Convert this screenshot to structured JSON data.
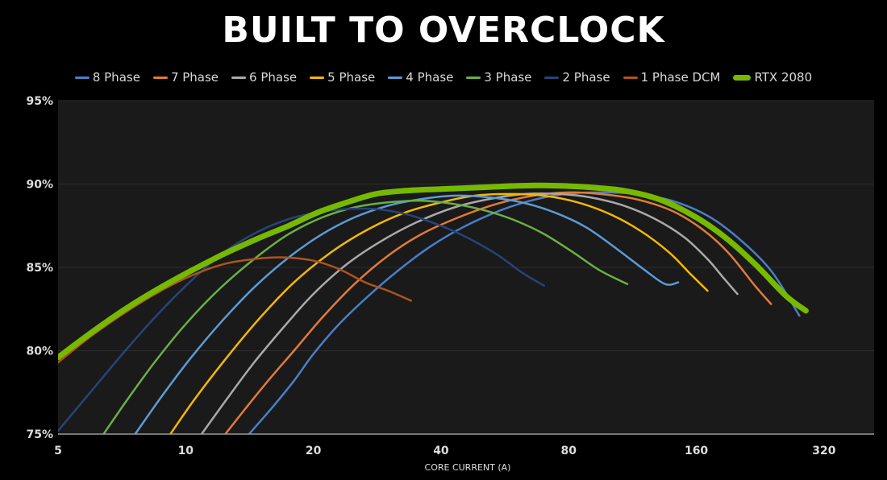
{
  "title": "BUILT TO OVERCLOCK",
  "chart_data": {
    "type": "line",
    "title": "BUILT TO OVERCLOCK",
    "xlabel": "CORE CURRENT (A)",
    "ylabel": "",
    "xscale": "log2",
    "xlim": [
      5,
      420
    ],
    "ylim": [
      75,
      95
    ],
    "xticks": [
      5,
      10,
      20,
      40,
      80,
      160,
      320
    ],
    "xtick_labels": [
      "5",
      "10",
      "20",
      "40",
      "80",
      "160",
      "320"
    ],
    "yticks": [
      75,
      80,
      85,
      90,
      95
    ],
    "ytick_labels": [
      "75%",
      "80%",
      "85%",
      "90%",
      "95%"
    ],
    "grid": true,
    "legend_position": "top",
    "background": "#1a1a1a",
    "series": [
      {
        "name": "8 Phase",
        "color": "#4a7ec9",
        "width": 2.5,
        "x": [
          14.1,
          16,
          18,
          20,
          23,
          27,
          32,
          38,
          45,
          55,
          65,
          78,
          95,
          115,
          140,
          170,
          200,
          240,
          280
        ],
        "y": [
          75,
          76.6,
          78.2,
          79.8,
          81.6,
          83.3,
          84.9,
          86.3,
          87.4,
          88.4,
          89.0,
          89.4,
          89.5,
          89.4,
          89.0,
          88.1,
          86.8,
          84.8,
          82.1
        ]
      },
      {
        "name": "7 Phase",
        "color": "#e07b39",
        "width": 2.5,
        "x": [
          12.4,
          14,
          16,
          18,
          21,
          25,
          30,
          36,
          44,
          54,
          66,
          80,
          95,
          115,
          140,
          165,
          190,
          220,
          240
        ],
        "y": [
          75,
          76.7,
          78.5,
          80.0,
          82.0,
          84.0,
          85.7,
          87.0,
          88.0,
          88.8,
          89.3,
          89.5,
          89.4,
          89.1,
          88.4,
          87.3,
          85.9,
          83.9,
          82.8
        ]
      },
      {
        "name": "6 Phase",
        "color": "#a9a9a9",
        "width": 2.5,
        "x": [
          10.9,
          12.5,
          14.5,
          17,
          20,
          24,
          29,
          35,
          43,
          52,
          63,
          76,
          90,
          108,
          128,
          150,
          170,
          185,
          200
        ],
        "y": [
          75,
          77.1,
          79.3,
          81.4,
          83.4,
          85.2,
          86.6,
          87.7,
          88.6,
          89.1,
          89.4,
          89.4,
          89.2,
          88.7,
          87.9,
          86.8,
          85.5,
          84.4,
          83.4
        ]
      },
      {
        "name": "5 Phase",
        "color": "#f5b800",
        "width": 2.5,
        "x": [
          9.2,
          10.5,
          12.5,
          15,
          18,
          22,
          27,
          33,
          40,
          48,
          58,
          70,
          84,
          100,
          118,
          138,
          155,
          170
        ],
        "y": [
          75,
          77.1,
          79.6,
          82.0,
          84.1,
          85.9,
          87.3,
          88.3,
          88.9,
          89.3,
          89.4,
          89.3,
          88.9,
          88.2,
          87.2,
          85.9,
          84.6,
          83.6
        ]
      },
      {
        "name": "4 Phase",
        "color": "#5b9bd5",
        "width": 2.5,
        "x": [
          7.6,
          8.8,
          10.3,
          12.2,
          14.5,
          17.5,
          21,
          25,
          30,
          36,
          43,
          52,
          62,
          74,
          88,
          104,
          120,
          135,
          145
        ],
        "y": [
          75,
          77.3,
          79.6,
          81.8,
          83.8,
          85.6,
          87.0,
          88.0,
          88.7,
          89.1,
          89.3,
          89.2,
          88.9,
          88.3,
          87.4,
          86.1,
          84.9,
          84.0,
          84.1
        ]
      },
      {
        "name": "3 Phase",
        "color": "#6aaf45",
        "width": 2.5,
        "x": [
          6.4,
          7.3,
          8.5,
          10,
          12,
          14.5,
          17.5,
          21,
          25,
          30,
          36,
          43,
          51,
          60,
          70,
          82,
          95,
          110
        ],
        "y": [
          75,
          77.1,
          79.4,
          81.6,
          83.7,
          85.5,
          87.0,
          88.0,
          88.6,
          88.9,
          89.0,
          88.8,
          88.4,
          87.8,
          87.0,
          85.9,
          84.8,
          84.0
        ]
      },
      {
        "name": "2 Phase",
        "color": "#264478",
        "width": 2.5,
        "x": [
          5,
          6,
          7.2,
          8.6,
          10.3,
          12.3,
          14.7,
          17.5,
          20.5,
          24,
          28,
          33,
          39,
          46,
          54,
          62,
          70
        ],
        "y": [
          75.2,
          77.6,
          80.0,
          82.2,
          84.2,
          85.9,
          87.1,
          87.9,
          88.3,
          88.5,
          88.5,
          88.2,
          87.6,
          86.8,
          85.8,
          84.7,
          83.9
        ]
      },
      {
        "name": "1 Phase DCM",
        "color": "#b0531e",
        "width": 2.5,
        "x": [
          5,
          6,
          7.2,
          8.6,
          10.3,
          12.3,
          14.5,
          17,
          20,
          23,
          26.5,
          30,
          34
        ],
        "y": [
          79.3,
          80.9,
          82.3,
          83.5,
          84.5,
          85.2,
          85.5,
          85.6,
          85.4,
          84.9,
          84.1,
          83.6,
          83.0
        ]
      },
      {
        "name": "RTX 2080",
        "color": "#76b900",
        "width": 7,
        "x": [
          5,
          6,
          7.2,
          8.6,
          10.3,
          12.3,
          14.7,
          17.5,
          20.5,
          24,
          28,
          33,
          40,
          50,
          62,
          75,
          90,
          108,
          130,
          155,
          185,
          220,
          260,
          290
        ],
        "y": [
          79.6,
          81.1,
          82.5,
          83.7,
          84.8,
          85.8,
          86.7,
          87.5,
          88.3,
          88.9,
          89.4,
          89.6,
          89.7,
          89.8,
          89.9,
          89.9,
          89.8,
          89.6,
          89.1,
          88.2,
          86.9,
          85.2,
          83.3,
          82.4
        ]
      }
    ]
  }
}
